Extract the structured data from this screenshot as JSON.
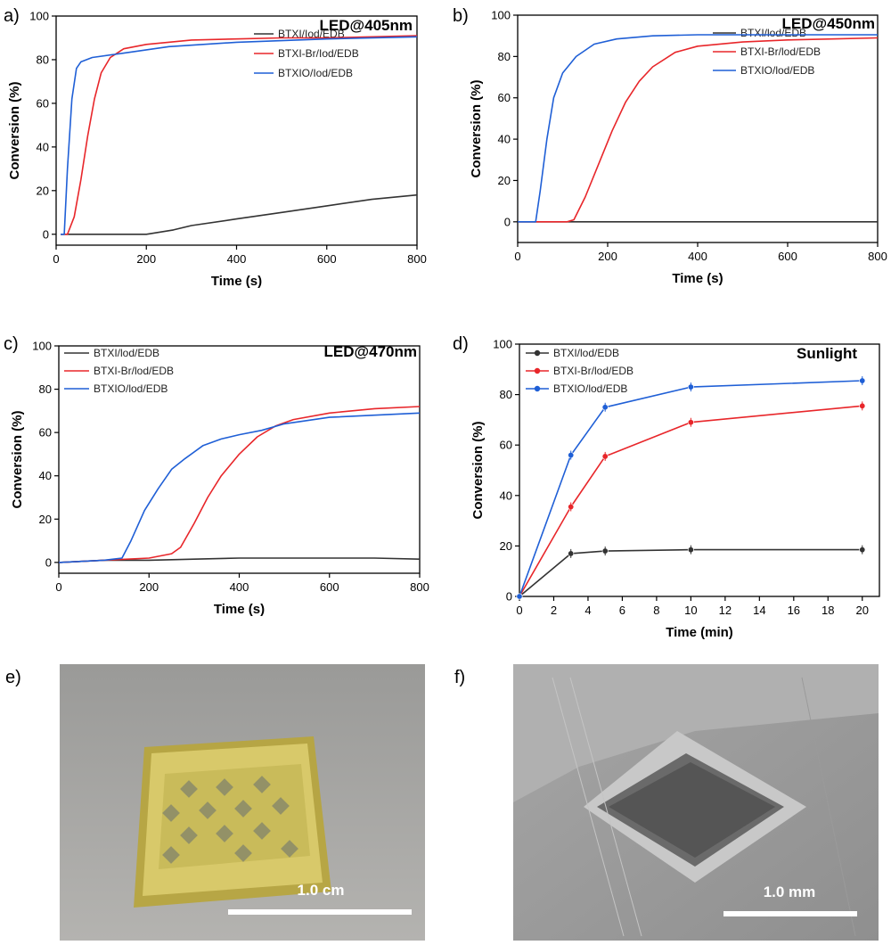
{
  "colors": {
    "BTXI": "#333333",
    "BTXI-Br": "#e8262a",
    "BTXIO": "#1f5fd6",
    "axis": "#000000"
  },
  "chart_data": [
    {
      "id": "a",
      "type": "line",
      "panel_label": "a)",
      "title": "LED@405nm",
      "xlabel": "Time (s)",
      "ylabel": "Conversion (%)",
      "xlim": [
        0,
        800
      ],
      "ylim": [
        -5,
        100
      ],
      "xticks": [
        0,
        200,
        400,
        600,
        800
      ],
      "yticks": [
        0,
        20,
        40,
        60,
        80,
        100
      ],
      "legend_position": "right",
      "series": [
        {
          "name": "BTXI/Iod/EDB",
          "color": "#333333",
          "points": [
            [
              10,
              0
            ],
            [
              100,
              0
            ],
            [
              200,
              0
            ],
            [
              260,
              2
            ],
            [
              300,
              4
            ],
            [
              400,
              7
            ],
            [
              500,
              10
            ],
            [
              600,
              13
            ],
            [
              700,
              16
            ],
            [
              800,
              18
            ]
          ]
        },
        {
          "name": "BTXI-Br/Iod/EDB",
          "color": "#e8262a",
          "points": [
            [
              10,
              0
            ],
            [
              25,
              0
            ],
            [
              40,
              8
            ],
            [
              55,
              25
            ],
            [
              70,
              45
            ],
            [
              85,
              62
            ],
            [
              100,
              74
            ],
            [
              120,
              81
            ],
            [
              150,
              85
            ],
            [
              200,
              87
            ],
            [
              300,
              89
            ],
            [
              400,
              89.5
            ],
            [
              500,
              90
            ],
            [
              600,
              90
            ],
            [
              700,
              90.5
            ],
            [
              800,
              91
            ]
          ]
        },
        {
          "name": "BTXIO/Iod/EDB",
          "color": "#1f5fd6",
          "points": [
            [
              10,
              0
            ],
            [
              18,
              0
            ],
            [
              25,
              30
            ],
            [
              35,
              62
            ],
            [
              45,
              76
            ],
            [
              55,
              79
            ],
            [
              80,
              81
            ],
            [
              150,
              83
            ],
            [
              250,
              86
            ],
            [
              400,
              88
            ],
            [
              600,
              89.5
            ],
            [
              800,
              90.5
            ]
          ]
        }
      ]
    },
    {
      "id": "b",
      "type": "line",
      "panel_label": "b)",
      "title": "LED@450nm",
      "xlabel": "Time (s)",
      "ylabel": "Conversion (%)",
      "xlim": [
        0,
        800
      ],
      "ylim": [
        -10,
        100
      ],
      "xticks": [
        0,
        200,
        400,
        600,
        800
      ],
      "yticks": [
        0,
        20,
        40,
        60,
        80,
        100
      ],
      "legend_position": "right",
      "series": [
        {
          "name": "BTXI/lod/EDB",
          "color": "#333333",
          "points": [
            [
              0,
              0
            ],
            [
              100,
              0
            ],
            [
              200,
              0
            ],
            [
              300,
              0
            ],
            [
              400,
              0
            ],
            [
              500,
              0
            ],
            [
              600,
              0
            ],
            [
              700,
              0
            ],
            [
              800,
              0
            ]
          ]
        },
        {
          "name": "BTXI-Br/lod/EDB",
          "color": "#e8262a",
          "points": [
            [
              0,
              0
            ],
            [
              110,
              0
            ],
            [
              125,
              1
            ],
            [
              150,
              12
            ],
            [
              180,
              28
            ],
            [
              210,
              44
            ],
            [
              240,
              58
            ],
            [
              270,
              68
            ],
            [
              300,
              75
            ],
            [
              350,
              82
            ],
            [
              400,
              85
            ],
            [
              500,
              87
            ],
            [
              600,
              88
            ],
            [
              700,
              88.5
            ],
            [
              800,
              89
            ]
          ]
        },
        {
          "name": "BTXIO/lod/EDB",
          "color": "#1f5fd6",
          "points": [
            [
              0,
              0
            ],
            [
              40,
              0
            ],
            [
              50,
              15
            ],
            [
              65,
              40
            ],
            [
              80,
              60
            ],
            [
              100,
              72
            ],
            [
              130,
              80
            ],
            [
              170,
              86
            ],
            [
              220,
              88.5
            ],
            [
              300,
              90
            ],
            [
              400,
              90.5
            ],
            [
              600,
              90.5
            ],
            [
              800,
              90.5
            ]
          ]
        }
      ]
    },
    {
      "id": "c",
      "type": "line",
      "panel_label": "c)",
      "title": "LED@470nm",
      "xlabel": "Time (s)",
      "ylabel": "Conversion (%)",
      "xlim": [
        0,
        800
      ],
      "ylim": [
        -5,
        100
      ],
      "xticks": [
        0,
        200,
        400,
        600,
        800
      ],
      "yticks": [
        0,
        20,
        40,
        60,
        80,
        100
      ],
      "legend_position": "top-left",
      "series": [
        {
          "name": "BTXI/lod/EDB",
          "color": "#333333",
          "points": [
            [
              0,
              0
            ],
            [
              100,
              1
            ],
            [
              200,
              1
            ],
            [
              300,
              1.5
            ],
            [
              400,
              2
            ],
            [
              500,
              2
            ],
            [
              600,
              2
            ],
            [
              700,
              2
            ],
            [
              800,
              1.5
            ]
          ]
        },
        {
          "name": "BTXI-Br/lod/EDB",
          "color": "#e8262a",
          "points": [
            [
              0,
              0
            ],
            [
              100,
              1
            ],
            [
              200,
              2
            ],
            [
              250,
              4
            ],
            [
              270,
              7
            ],
            [
              300,
              18
            ],
            [
              330,
              30
            ],
            [
              360,
              40
            ],
            [
              400,
              50
            ],
            [
              440,
              58
            ],
            [
              480,
              63
            ],
            [
              520,
              66
            ],
            [
              600,
              69
            ],
            [
              700,
              71
            ],
            [
              800,
              72
            ]
          ]
        },
        {
          "name": "BTXIO/lod/EDB",
          "color": "#1f5fd6",
          "points": [
            [
              0,
              0
            ],
            [
              100,
              1
            ],
            [
              140,
              2
            ],
            [
              160,
              10
            ],
            [
              190,
              24
            ],
            [
              220,
              34
            ],
            [
              250,
              43
            ],
            [
              280,
              48
            ],
            [
              320,
              54
            ],
            [
              360,
              57
            ],
            [
              400,
              59
            ],
            [
              450,
              61
            ],
            [
              500,
              64
            ],
            [
              600,
              67
            ],
            [
              700,
              68
            ],
            [
              800,
              69
            ]
          ]
        }
      ]
    },
    {
      "id": "d",
      "type": "line",
      "panel_label": "d)",
      "title": "Sunlight",
      "xlabel": "Time (min)",
      "ylabel": "Conversion (%)",
      "xlim": [
        0,
        21
      ],
      "ylim": [
        0,
        100
      ],
      "xticks": [
        0,
        2,
        4,
        6,
        8,
        10,
        12,
        14,
        16,
        18,
        20
      ],
      "yticks": [
        0,
        20,
        40,
        60,
        80,
        100
      ],
      "legend_position": "top-left",
      "markers": true,
      "series": [
        {
          "name": "BTXI/lod/EDB",
          "color": "#333333",
          "points": [
            [
              0,
              0
            ],
            [
              3,
              17
            ],
            [
              5,
              18
            ],
            [
              10,
              18.5
            ],
            [
              20,
              18.5
            ]
          ]
        },
        {
          "name": "BTXI-Br/lod/EDB",
          "color": "#e8262a",
          "points": [
            [
              0,
              0
            ],
            [
              3,
              35.5
            ],
            [
              5,
              55.5
            ],
            [
              10,
              69
            ],
            [
              20,
              75.5
            ]
          ]
        },
        {
          "name": "BTXIO/lod/EDB",
          "color": "#1f5fd6",
          "points": [
            [
              0,
              0
            ],
            [
              3,
              56
            ],
            [
              5,
              75
            ],
            [
              10,
              83
            ],
            [
              20,
              85.5
            ]
          ]
        }
      ]
    }
  ],
  "photos": {
    "e": {
      "panel_label": "e)",
      "scale_bar": "1.0 cm"
    },
    "f": {
      "panel_label": "f)",
      "scale_bar": "1.0 mm"
    }
  }
}
